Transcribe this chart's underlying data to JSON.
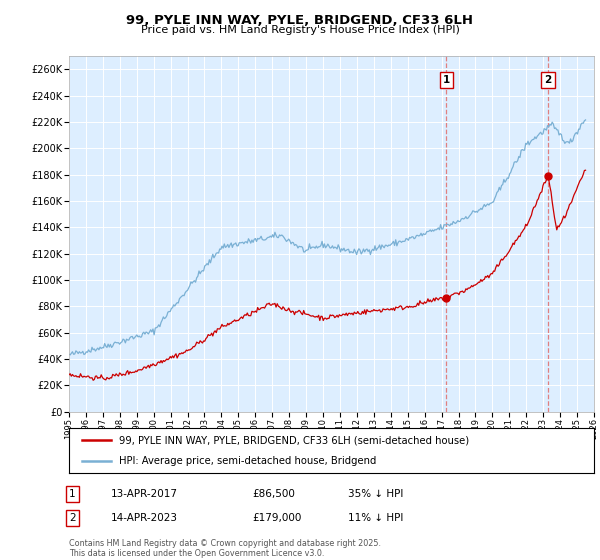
{
  "title": "99, PYLE INN WAY, PYLE, BRIDGEND, CF33 6LH",
  "subtitle": "Price paid vs. HM Land Registry's House Price Index (HPI)",
  "legend_line1": "99, PYLE INN WAY, PYLE, BRIDGEND, CF33 6LH (semi-detached house)",
  "legend_line2": "HPI: Average price, semi-detached house, Bridgend",
  "footnote": "Contains HM Land Registry data © Crown copyright and database right 2025.\nThis data is licensed under the Open Government Licence v3.0.",
  "point1_label": "1",
  "point1_date": "13-APR-2017",
  "point1_price": "£86,500",
  "point1_hpi": "35% ↓ HPI",
  "point1_year": 2017.28,
  "point1_value": 86500,
  "point2_label": "2",
  "point2_date": "14-APR-2023",
  "point2_price": "£179,000",
  "point2_hpi": "11% ↓ HPI",
  "point2_year": 2023.28,
  "point2_value": 179000,
  "property_color": "#cc0000",
  "hpi_color": "#7ab0d4",
  "dashed_color": "#e08080",
  "background_color": "#ddeeff",
  "plot_bg_color": "#ddeeff",
  "ylim": [
    0,
    270000
  ],
  "xlim_start": 1995,
  "xlim_end": 2026
}
